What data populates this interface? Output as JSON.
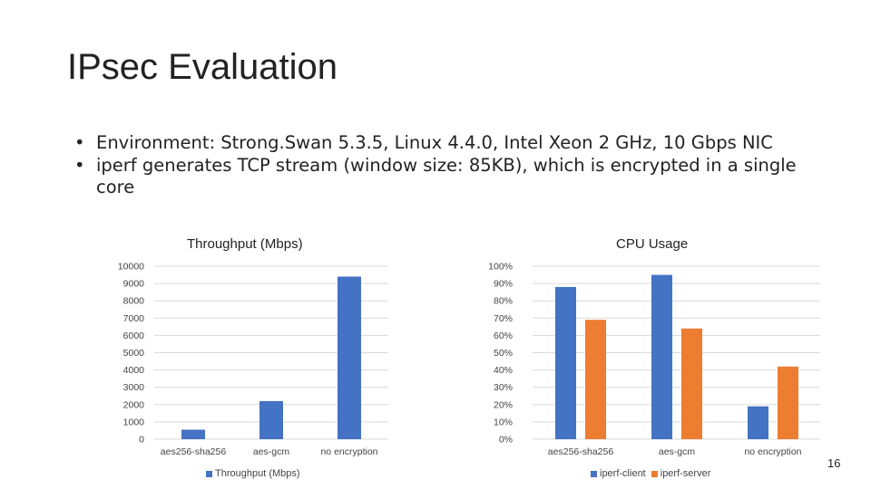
{
  "slide": {
    "title": "IPsec Evaluation",
    "bullets": [
      "Environment: Strong.Swan 5.3.5, Linux 4.4.0, Intel Xeon 2 GHz, 10 Gbps NIC",
      "iperf generates TCP stream (window size: 85KB), which is encrypted in a single core"
    ],
    "bullet_symbol": "•",
    "page_number": "16"
  },
  "chart_data": [
    {
      "type": "bar",
      "title": "Throughput (Mbps)",
      "categories": [
        "aes256-sha256",
        "aes-gcm",
        "no encryption"
      ],
      "series": [
        {
          "name": "Throughput (Mbps)",
          "values": [
            550,
            2200,
            9400
          ],
          "color": "#4472C4"
        }
      ],
      "ylim": [
        0,
        10000
      ],
      "yticks": [
        "0",
        "1000",
        "2000",
        "3000",
        "4000",
        "5000",
        "6000",
        "7000",
        "8000",
        "9000",
        "10000"
      ],
      "grid": true,
      "legend": "bottom"
    },
    {
      "type": "bar",
      "title": "CPU Usage",
      "categories": [
        "aes256-sha256",
        "aes-gcm",
        "no encryption"
      ],
      "series": [
        {
          "name": "iperf-client",
          "values": [
            88,
            95,
            19
          ],
          "color": "#4472C4"
        },
        {
          "name": "iperf-server",
          "values": [
            69,
            64,
            42
          ],
          "color": "#ED7D31"
        }
      ],
      "ylim": [
        0,
        100
      ],
      "yticks": [
        "0%",
        "10%",
        "20%",
        "30%",
        "40%",
        "50%",
        "60%",
        "70%",
        "80%",
        "90%",
        "100%"
      ],
      "grid": true,
      "legend": "bottom"
    }
  ]
}
